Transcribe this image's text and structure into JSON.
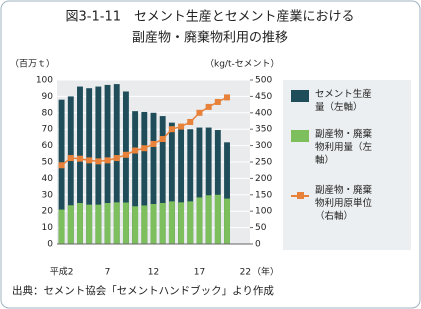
{
  "chart_data": {
    "type": "bar+line",
    "title": [
      "図3-1-11　セメント生産とセメント産業における",
      "副産物・廃棄物利用の推移"
    ],
    "y_label": "（百万ｔ）",
    "y2_label": "（kg/t-セメント）",
    "x_label": "（年）",
    "source": "出典：セメント協会「セメントハンドブック」より作成",
    "categories": [
      "平成2",
      null,
      null,
      null,
      null,
      "7",
      null,
      null,
      null,
      null,
      "12",
      null,
      null,
      null,
      null,
      "17",
      null,
      null,
      null,
      null,
      "22"
    ],
    "series": [
      {
        "name": "セメント生産量（左軸）",
        "type": "bar",
        "color": "#1f4d5a",
        "values": [
          88,
          90,
          96,
          95,
          96,
          97,
          97.5,
          93,
          81,
          80.5,
          80,
          78,
          74,
          71,
          70,
          71,
          71,
          69.5,
          62,
          null,
          null
        ]
      },
      {
        "name": "副産物・廃棄物利用量（左軸）",
        "type": "bar",
        "color": "#7cbf5c",
        "values": [
          21,
          23.6,
          25,
          24,
          24,
          25,
          25.4,
          25.3,
          23,
          23.5,
          24.4,
          25,
          26,
          25.4,
          26,
          28.4,
          29.7,
          30,
          27.7,
          null,
          null
        ]
      },
      {
        "name": "副産物・廃棄物利用原単位（右軸）",
        "type": "line",
        "axis": "y2",
        "color": "#e8823a",
        "values": [
          240,
          262,
          260,
          255,
          252,
          255,
          262,
          272,
          285,
          292,
          305,
          320,
          350,
          358,
          372,
          400,
          418,
          433,
          447,
          null,
          null
        ]
      }
    ],
    "ylim": [
      0,
      100
    ],
    "yticks": [
      0,
      10,
      20,
      30,
      40,
      50,
      60,
      70,
      80,
      90,
      100
    ],
    "y2lim": [
      0,
      500
    ],
    "y2ticks": [
      0,
      50,
      100,
      150,
      200,
      250,
      300,
      350,
      400,
      450,
      500
    ],
    "grid": true
  }
}
